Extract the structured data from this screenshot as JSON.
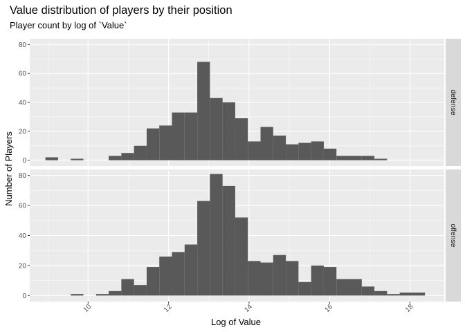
{
  "chart_data": {
    "type": "bar",
    "title": "Value distribution of players by their position",
    "subtitle": "Player count by log of `Value`",
    "xlabel": "Log of Value",
    "ylabel": "Number of Players",
    "xlim": [
      8.55,
      18.85
    ],
    "ylim": [
      -4,
      84
    ],
    "x_ticks": [
      10,
      12,
      14,
      16,
      18
    ],
    "y_ticks": [
      0,
      20,
      40,
      60,
      80
    ],
    "grid": true,
    "facets": [
      "defense",
      "offense"
    ],
    "bin_width": 0.3144,
    "bins_start": 8.94,
    "series": [
      {
        "name": "defense",
        "values": [
          2,
          0,
          1,
          0,
          0,
          3,
          5,
          10,
          22,
          24,
          33,
          33,
          68,
          43,
          40,
          29,
          13,
          23,
          17,
          11,
          12,
          13,
          8,
          3,
          3,
          3,
          1,
          0,
          0,
          0
        ]
      },
      {
        "name": "offense",
        "values": [
          0,
          0,
          1,
          0,
          1,
          3,
          11,
          7,
          19,
          26,
          29,
          34,
          63,
          81,
          73,
          52,
          23,
          22,
          27,
          23,
          9,
          20,
          19,
          11,
          11,
          6,
          3,
          1,
          2,
          2
        ]
      }
    ]
  },
  "colors": {
    "panel_bg": "#ebebeb",
    "strip_bg": "#d9d9d9",
    "bar_fill": "#595959",
    "grid_major": "#ffffff"
  }
}
